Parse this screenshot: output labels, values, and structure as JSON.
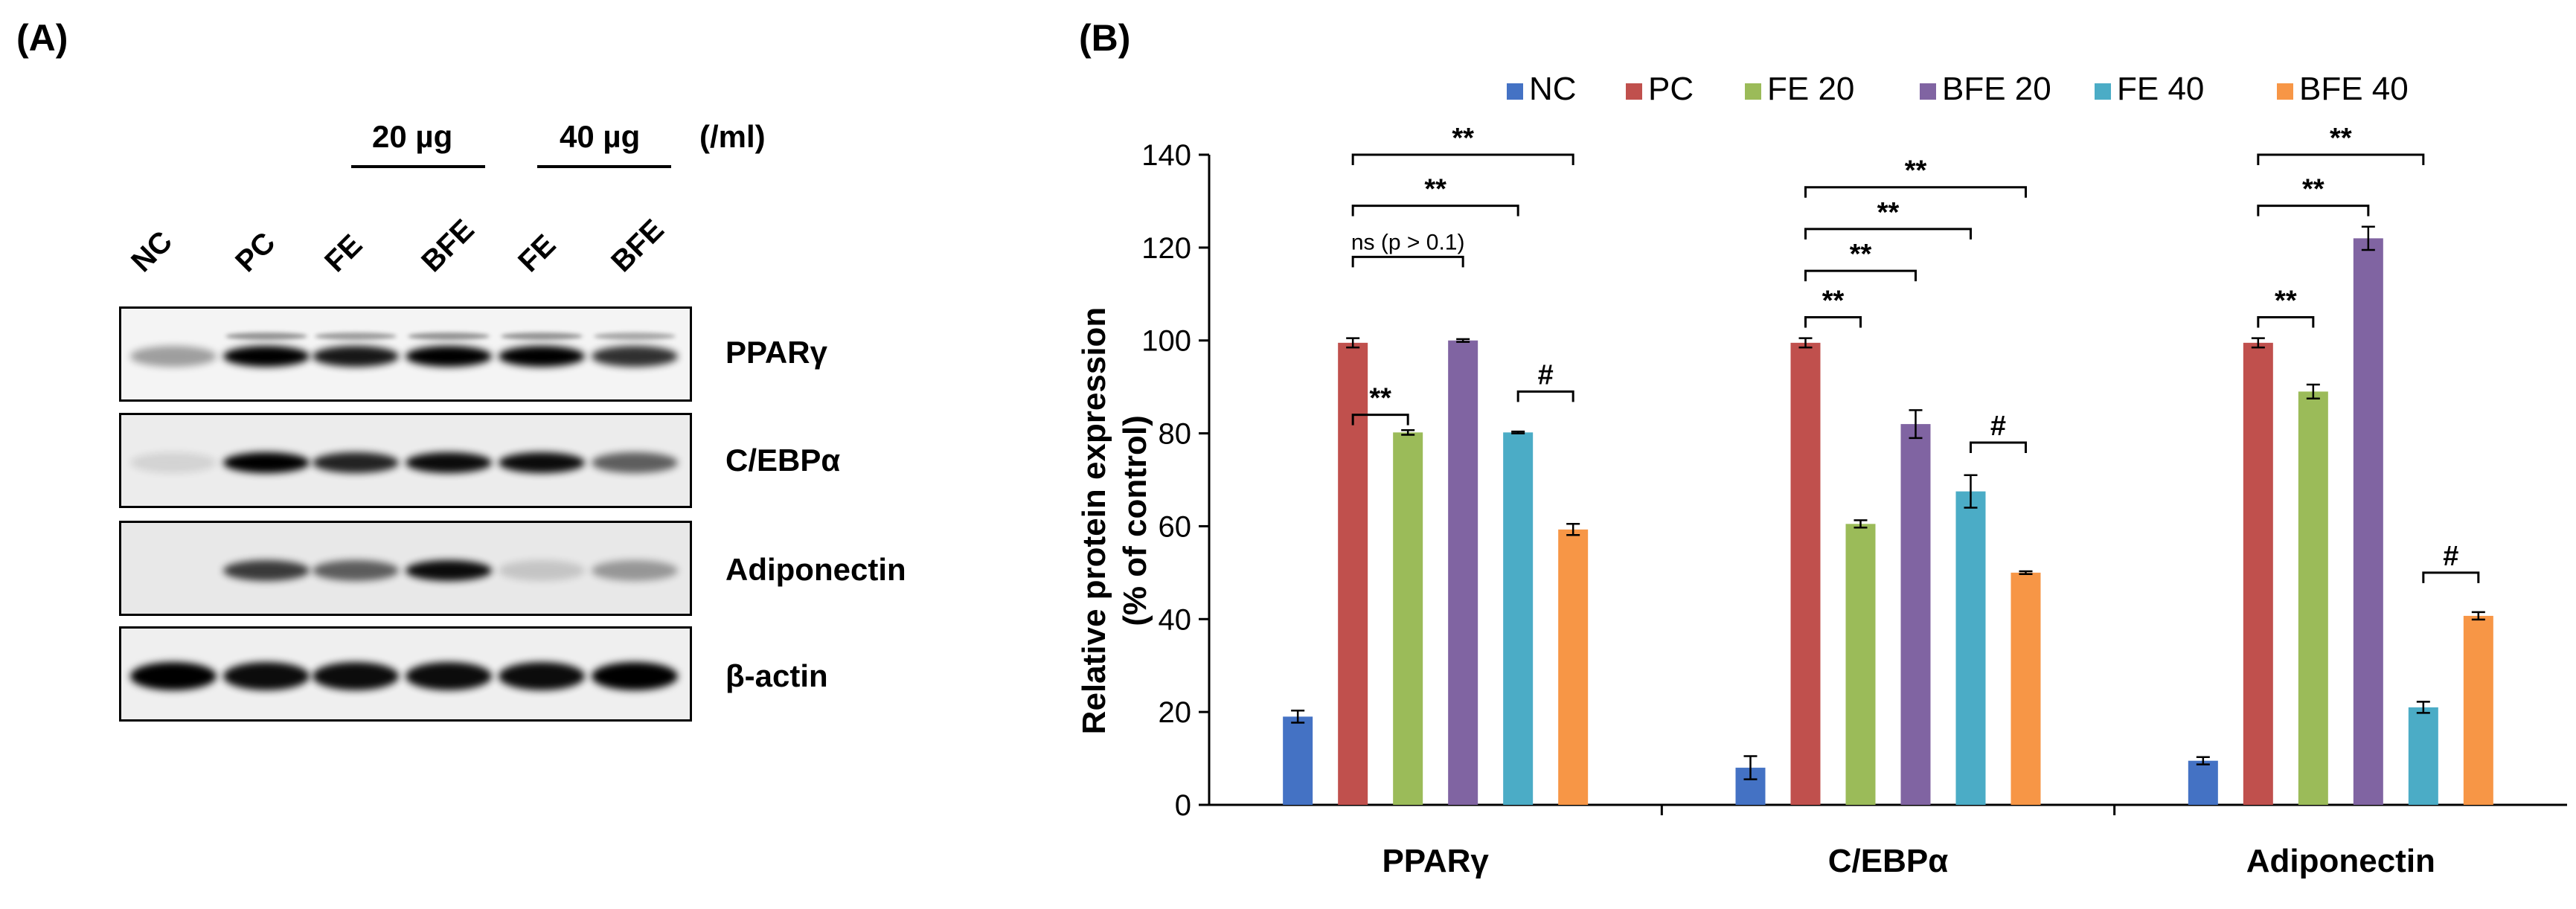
{
  "panelA": {
    "label": "(A)",
    "dose_20": "20 µg",
    "dose_40": "40 µg",
    "dose_unit": "(/ml)",
    "lanes": [
      "NC",
      "PC",
      "FE",
      "BFE",
      "FE",
      "BFE"
    ],
    "proteins": [
      "PPARγ",
      "C/EBPα",
      "Adiponectin",
      "β-actin"
    ],
    "band_intensity": {
      "PPARγ": [
        0.35,
        1.0,
        0.9,
        1.0,
        1.0,
        0.8
      ],
      "C/EBPα": [
        0.1,
        1.0,
        0.85,
        0.95,
        0.95,
        0.6
      ],
      "Adiponectin": [
        0.0,
        0.75,
        0.6,
        0.95,
        0.15,
        0.35
      ],
      "β-actin": [
        1.0,
        0.95,
        0.95,
        0.95,
        0.95,
        1.0
      ]
    }
  },
  "panelB": {
    "label": "(B)"
  },
  "chart_data": {
    "type": "bar",
    "title": "",
    "xlabel": "",
    "ylabel_line1": "Relative protein expression",
    "ylabel_line2": "(% of control)",
    "ylim": [
      0,
      140
    ],
    "yticks": [
      0,
      20,
      40,
      60,
      80,
      100,
      120,
      140
    ],
    "categories": [
      "PPARγ",
      "C/EBPα",
      "Adiponectin"
    ],
    "legend_position": "top",
    "series": [
      {
        "name": "NC",
        "color": "#4472C4",
        "values": [
          19,
          8,
          9.5
        ],
        "errors": [
          1.3,
          2.5,
          0.8
        ]
      },
      {
        "name": "PC",
        "color": "#C0504D",
        "values": [
          99.5,
          99.5,
          99.5
        ],
        "errors": [
          1.0,
          1.0,
          1.0
        ]
      },
      {
        "name": "FE 20",
        "color": "#9BBB59",
        "values": [
          80.2,
          60.5,
          89
        ],
        "errors": [
          0.5,
          0.8,
          1.5
        ]
      },
      {
        "name": "BFE 20",
        "color": "#8064A2",
        "values": [
          100,
          82,
          122
        ],
        "errors": [
          0.3,
          3.0,
          2.5
        ]
      },
      {
        "name": "FE 40",
        "color": "#4BACC6",
        "values": [
          80.2,
          67.5,
          21
        ],
        "errors": [
          0.2,
          3.5,
          1.2
        ]
      },
      {
        "name": "BFE 40",
        "color": "#F79646",
        "values": [
          59.3,
          50,
          40.7
        ],
        "errors": [
          1.2,
          0.3,
          0.8
        ]
      }
    ],
    "annotations": [
      {
        "category": 0,
        "from": 1,
        "to": 2,
        "text": "**",
        "top": 84
      },
      {
        "category": 0,
        "from": 1,
        "to": 3,
        "text": "ns (p > 0.1)",
        "top": 118
      },
      {
        "category": 0,
        "from": 1,
        "to": 4,
        "text": "**",
        "top": 129
      },
      {
        "category": 0,
        "from": 1,
        "to": 5,
        "text": "**",
        "top": 140
      },
      {
        "category": 0,
        "from": 4,
        "to": 5,
        "text": "#",
        "top": 89
      },
      {
        "category": 1,
        "from": 1,
        "to": 2,
        "text": "**",
        "top": 105
      },
      {
        "category": 1,
        "from": 1,
        "to": 3,
        "text": "**",
        "top": 115
      },
      {
        "category": 1,
        "from": 1,
        "to": 4,
        "text": "**",
        "top": 124
      },
      {
        "category": 1,
        "from": 1,
        "to": 5,
        "text": "**",
        "top": 133
      },
      {
        "category": 1,
        "from": 4,
        "to": 5,
        "text": "#",
        "top": 78
      },
      {
        "category": 2,
        "from": 1,
        "to": 2,
        "text": "**",
        "top": 105
      },
      {
        "category": 2,
        "from": 1,
        "to": 3,
        "text": "**",
        "top": 129
      },
      {
        "category": 2,
        "from": 1,
        "to": 4,
        "text": "**",
        "top": 140
      },
      {
        "category": 2,
        "from": 4,
        "to": 5,
        "text": "#",
        "top": 50
      }
    ]
  }
}
